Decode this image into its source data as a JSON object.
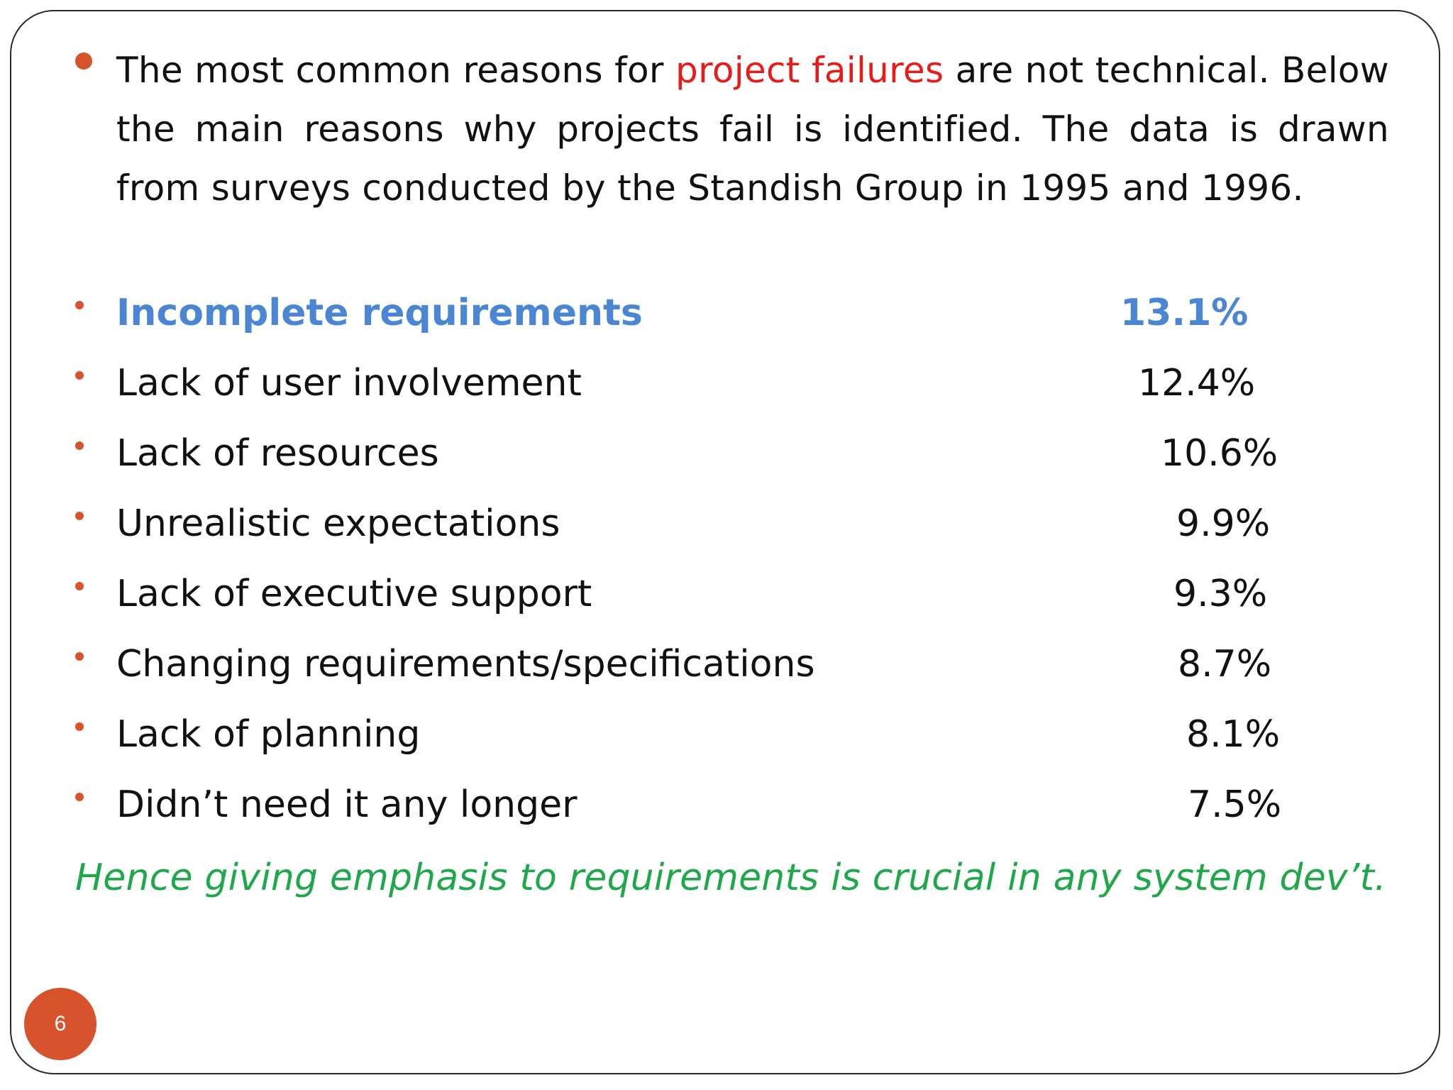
{
  "intro": {
    "before": "The most common reasons for ",
    "highlight": "project failures",
    "after": " are not technical. Below the main reasons why projects fail is identified. The data is drawn from surveys conducted by the Standish Group in 1995 and 1996."
  },
  "reasons": [
    {
      "label": "Incomplete requirements",
      "value": "13.1%"
    },
    {
      "label": "Lack of user involvement",
      "value": "12.4%"
    },
    {
      "label": "Lack of resources",
      "value": "10.6%"
    },
    {
      "label": "Unrealistic expectations",
      "value": "9.9%"
    },
    {
      "label": "Lack of executive support",
      "value": "9.3%"
    },
    {
      "label": "Changing requirements/specifications",
      "value": "8.7%"
    },
    {
      "label": "Lack of planning",
      "value": "8.1%"
    },
    {
      "label": "Didn’t need it any longer",
      "value": "7.5%"
    }
  ],
  "conclusion": "Hence  giving emphasis to requirements is crucial in any system dev’t.",
  "page_number": "6",
  "colors": {
    "bullet": "#d6532c",
    "highlight_red": "#e81a1a",
    "highlight_blue": "#4a86d4",
    "conclusion_green": "#1fa84a",
    "text": "#111111"
  }
}
